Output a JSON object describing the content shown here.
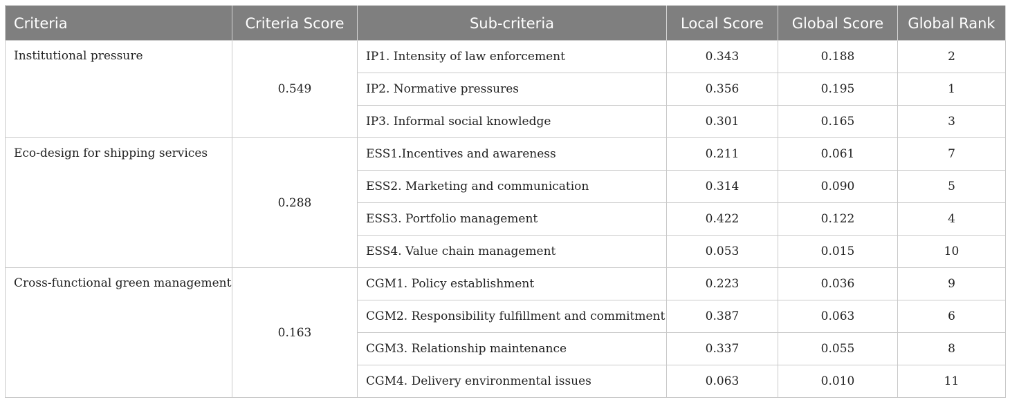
{
  "headers": {
    "criteria": "Criteria",
    "criteria_score": "Criteria Score",
    "sub_criteria": "Sub-criteria",
    "local_score": "Local Score",
    "global_score": "Global Score",
    "global_rank": "Global Rank"
  },
  "groups": [
    {
      "criteria": "Institutional pressure",
      "score": "0.549",
      "rows": [
        {
          "sub": "IP1. Intensity of law enforcement",
          "local": "0.343",
          "global": "0.188",
          "rank": "2"
        },
        {
          "sub": "IP2. Normative pressures",
          "local": "0.356",
          "global": "0.195",
          "rank": "1"
        },
        {
          "sub": "IP3. Informal social knowledge",
          "local": "0.301",
          "global": "0.165",
          "rank": "3"
        }
      ]
    },
    {
      "criteria": "Eco-design for shipping services",
      "score": "0.288",
      "rows": [
        {
          "sub": "ESS1.Incentives and awareness",
          "local": "0.211",
          "global": "0.061",
          "rank": "7"
        },
        {
          "sub": "ESS2. Marketing and communication",
          "local": "0.314",
          "global": "0.090",
          "rank": "5"
        },
        {
          "sub": "ESS3. Portfolio management",
          "local": "0.422",
          "global": "0.122",
          "rank": "4"
        },
        {
          "sub": "ESS4. Value chain management",
          "local": "0.053",
          "global": "0.015",
          "rank": "10"
        }
      ]
    },
    {
      "criteria": "Cross-functional green management",
      "score": "0.163",
      "rows": [
        {
          "sub": "CGM1. Policy establishment",
          "local": "0.223",
          "global": "0.036",
          "rank": "9"
        },
        {
          "sub": "CGM2. Responsibility fulfillment and commitment",
          "local": "0.387",
          "global": "0.063",
          "rank": "6"
        },
        {
          "sub": "CGM3. Relationship maintenance",
          "local": "0.337",
          "global": "0.055",
          "rank": "8"
        },
        {
          "sub": "CGM4. Delivery environmental issues",
          "local": "0.063",
          "global": "0.010",
          "rank": "11"
        }
      ]
    }
  ]
}
